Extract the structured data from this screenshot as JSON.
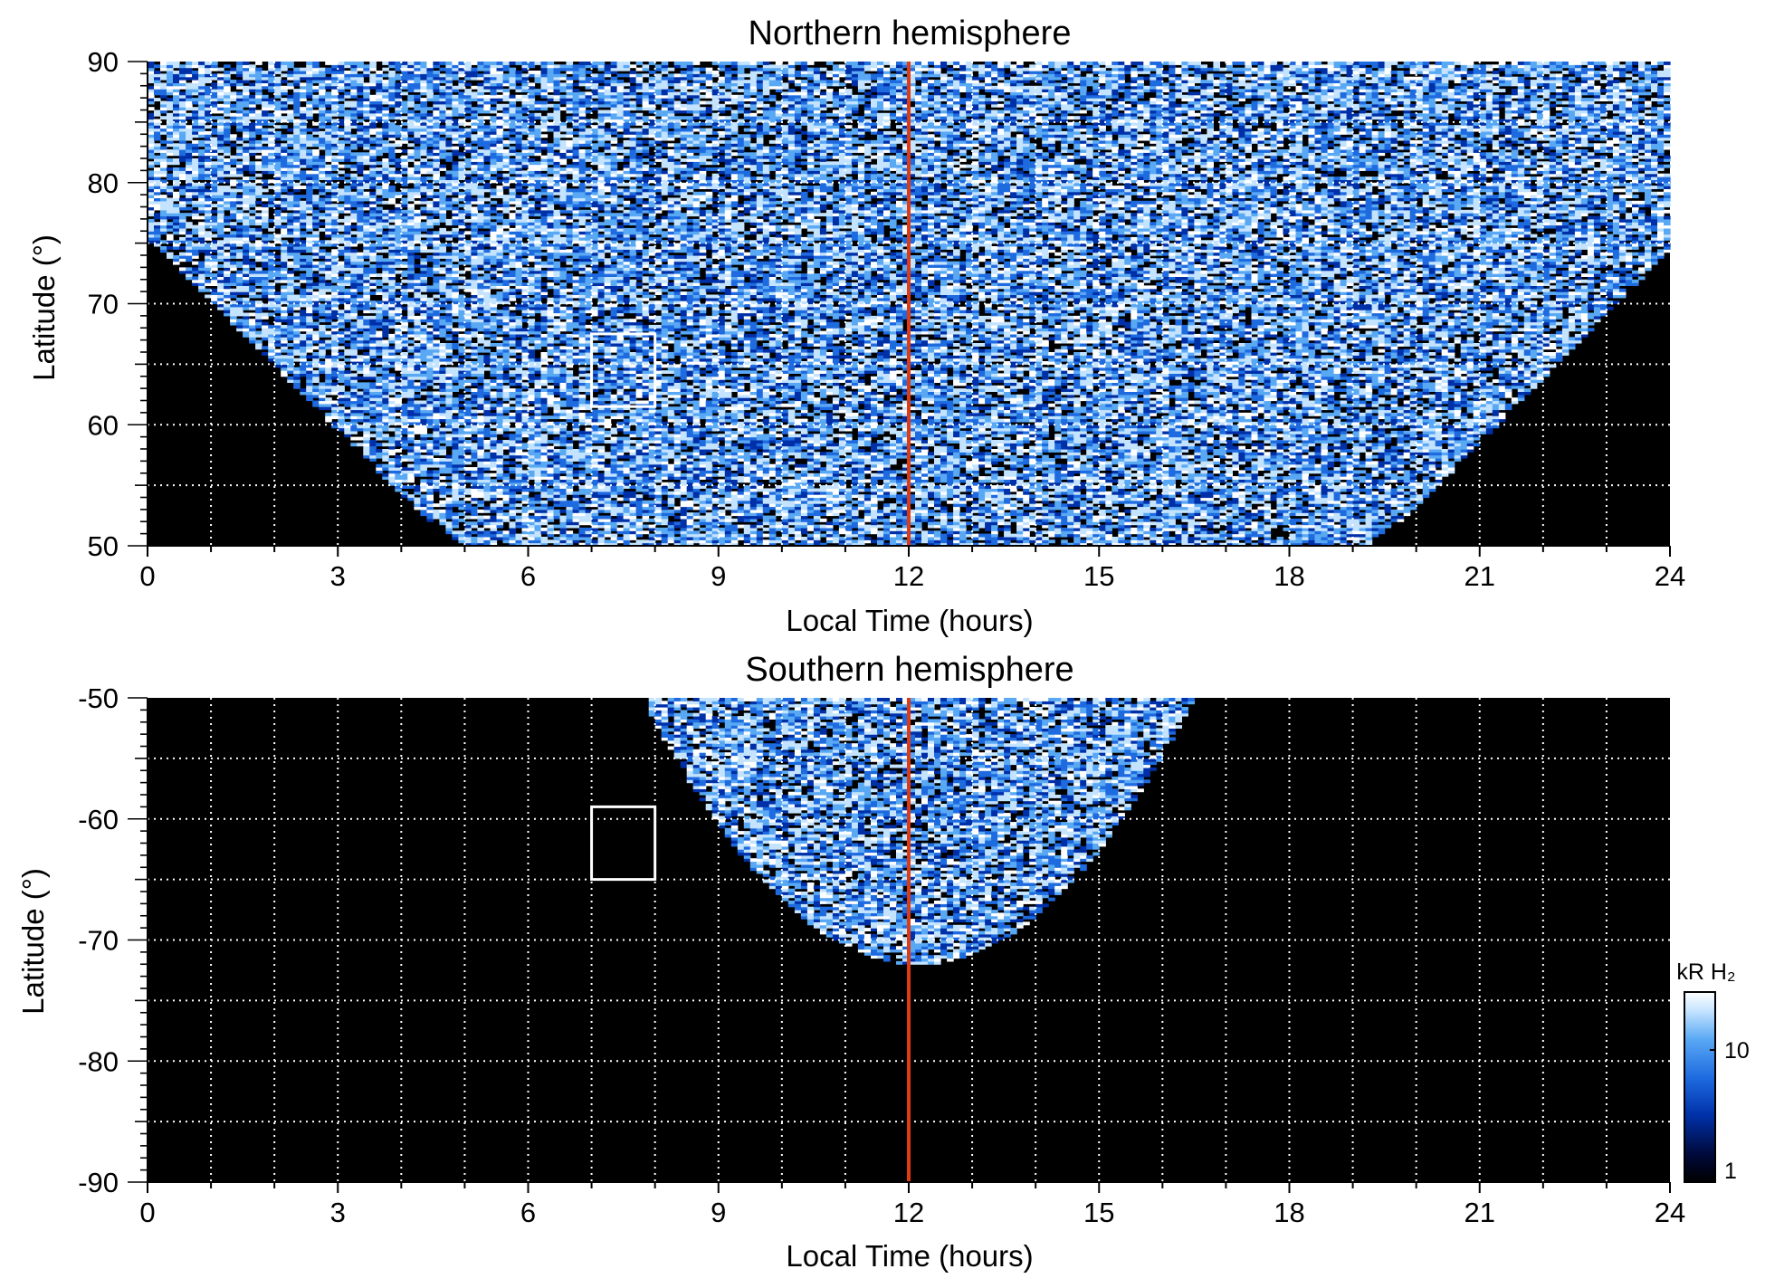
{
  "chart_data": [
    {
      "type": "heatmap",
      "title": "Northern hemisphere",
      "xlabel": "Local Time (hours)",
      "ylabel": "Latitude (°)",
      "xlim": [
        0,
        24
      ],
      "ylim": [
        50,
        90
      ],
      "xticks": [
        "0",
        "3",
        "6",
        "9",
        "12",
        "15",
        "18",
        "21",
        "24"
      ],
      "yticks": [
        "50",
        "60",
        "70",
        "80",
        "90"
      ],
      "grid": "dotted, every 1 h local time and every 5° latitude",
      "coverage": "emission fills 75°–90° at all local times; reaches down to 50° between about 4.8 h and 19.5 h",
      "reference_line": {
        "x": 12,
        "color": "#e03a12"
      },
      "box": {
        "x": [
          7,
          8
        ],
        "y": [
          61.5,
          67.5
        ],
        "color": "#ffffff"
      }
    },
    {
      "type": "heatmap",
      "title": "Southern hemisphere",
      "xlabel": "Local Time (hours)",
      "ylabel": "Latitude (°)",
      "xlim": [
        0,
        24
      ],
      "ylim": [
        -90,
        -50
      ],
      "xticks": [
        "0",
        "3",
        "6",
        "9",
        "12",
        "15",
        "18",
        "21",
        "24"
      ],
      "yticks": [
        "-50",
        "-60",
        "-70",
        "-80",
        "-90"
      ],
      "grid": "dotted, every 1 h local time and every 5° latitude",
      "coverage": "emission only between about 7.8 h and 16.5 h local time, reaching about -72° near 12.5 h",
      "reference_line": {
        "x": 12,
        "color": "#e03a12"
      },
      "box": {
        "x": [
          7,
          8
        ],
        "y": [
          -65,
          -59
        ],
        "color": "#ffffff"
      }
    }
  ],
  "colorbar": {
    "label": "kR H₂",
    "ticks": [
      "10",
      "1"
    ],
    "colors": [
      "#000000",
      "#000a3c",
      "#0030a8",
      "#1e6be0",
      "#59a8f4",
      "#c4e3ff",
      "#ffffff"
    ]
  }
}
